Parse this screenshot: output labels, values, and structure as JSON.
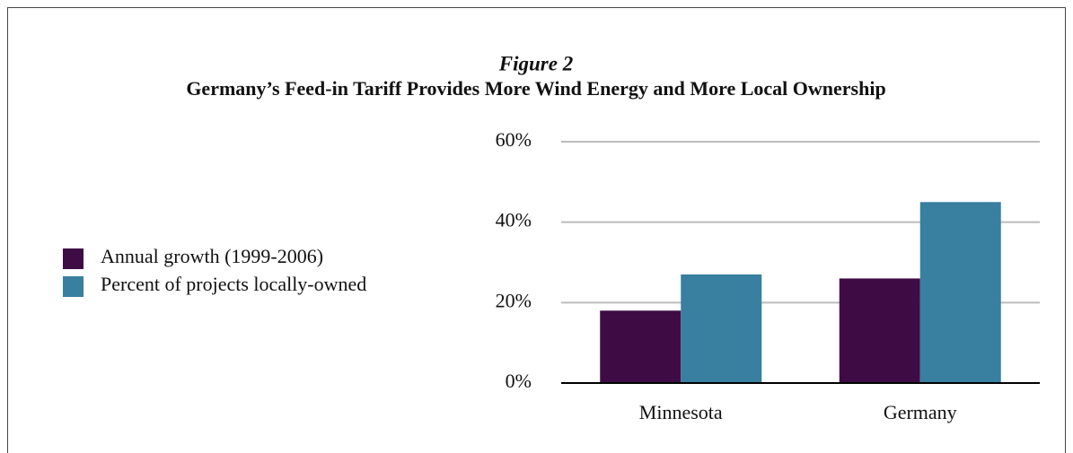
{
  "chart_data": {
    "type": "bar",
    "title": "Figure 2",
    "subtitle": "Germany’s Feed-in Tariff Provides More Wind Energy and More Local Ownership",
    "categories": [
      "Minnesota",
      "Germany"
    ],
    "series": [
      {
        "name": "Annual growth (1999-2006)",
        "color": "#3f0b45",
        "values": [
          18,
          26
        ]
      },
      {
        "name": "Percent of projects locally-owned",
        "color": "#387fa0",
        "values": [
          27,
          45
        ]
      }
    ],
    "ylim": [
      0,
      60
    ],
    "yticks": [
      {
        "value": 0,
        "label": "0%"
      },
      {
        "value": 20,
        "label": "20%"
      },
      {
        "value": 40,
        "label": "40%"
      },
      {
        "value": 60,
        "label": "60%"
      }
    ],
    "grid": true,
    "legend": "left"
  }
}
